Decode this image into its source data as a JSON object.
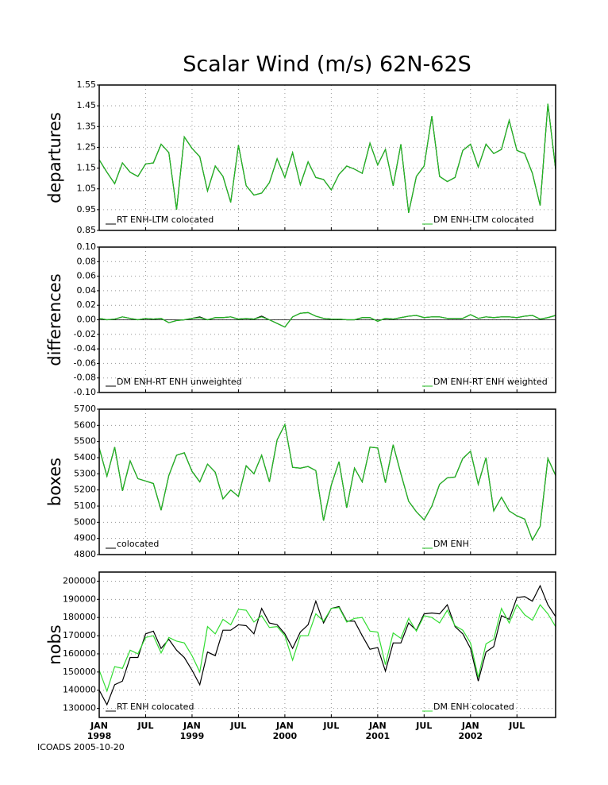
{
  "title": "Scalar Wind (m/s) 62N-62S",
  "footer": "ICOADS 2005-10-20",
  "x_axis": {
    "categories": [
      "JAN",
      null,
      null,
      null,
      null,
      null,
      "JUL",
      null,
      null,
      null,
      null,
      null,
      "JAN",
      null,
      null,
      null,
      null,
      null,
      "JUL",
      null,
      null,
      null,
      null,
      null,
      "JAN",
      null,
      null,
      null,
      null,
      null,
      "JUL",
      null,
      null,
      null,
      null,
      null,
      "JAN",
      null,
      null,
      null,
      null,
      null,
      "JUL",
      null,
      null,
      null,
      null,
      null,
      "JAN",
      null,
      null,
      null,
      null,
      null,
      "JUL",
      null,
      null,
      null,
      null,
      null
    ],
    "years": [
      "1998",
      null,
      null,
      null,
      null,
      null,
      null,
      null,
      null,
      null,
      null,
      null,
      "1999",
      null,
      null,
      null,
      null,
      null,
      null,
      null,
      null,
      null,
      null,
      null,
      "2000",
      null,
      null,
      null,
      null,
      null,
      null,
      null,
      null,
      null,
      null,
      null,
      "2001",
      null,
      null,
      null,
      null,
      null,
      null,
      null,
      null,
      null,
      null,
      null,
      "2002",
      null,
      null,
      null,
      null,
      null,
      null,
      null,
      null,
      null,
      null,
      null
    ]
  },
  "chart_data": [
    {
      "type": "line",
      "y_label": "departures",
      "ylim": [
        0.85,
        1.55
      ],
      "yticks": [
        0.85,
        0.95,
        1.05,
        1.15,
        1.25,
        1.35,
        1.45,
        1.55
      ],
      "grid": true,
      "series": [
        {
          "name": "RT ENH-LTM colocated",
          "color": "#000000",
          "values": [
            1.19,
            1.13,
            1.075,
            1.175,
            1.13,
            1.11,
            1.17,
            1.175,
            1.265,
            1.225,
            0.95,
            1.3,
            1.245,
            1.205,
            1.04,
            1.16,
            1.11,
            0.985,
            1.26,
            1.065,
            1.02,
            1.03,
            1.08,
            1.195,
            1.105,
            1.225,
            1.07,
            1.18,
            1.105,
            1.095,
            1.045,
            1.12,
            1.16,
            1.145,
            1.125,
            1.27,
            1.165,
            1.24,
            1.065,
            1.265,
            0.935,
            1.11,
            1.16,
            1.4,
            1.11,
            1.085,
            1.105,
            1.235,
            1.265,
            1.155,
            1.265,
            1.22,
            1.24,
            1.38,
            1.235,
            1.22,
            1.125,
            0.97,
            1.46,
            1.145
          ]
        },
        {
          "name": "DM ENH-LTM colocated",
          "color": "#22bb22",
          "values": [
            1.19,
            1.13,
            1.075,
            1.175,
            1.13,
            1.11,
            1.17,
            1.175,
            1.265,
            1.225,
            0.95,
            1.3,
            1.245,
            1.205,
            1.04,
            1.16,
            1.11,
            0.985,
            1.26,
            1.065,
            1.02,
            1.03,
            1.08,
            1.195,
            1.105,
            1.225,
            1.07,
            1.18,
            1.105,
            1.095,
            1.045,
            1.12,
            1.16,
            1.145,
            1.125,
            1.27,
            1.165,
            1.24,
            1.065,
            1.265,
            0.935,
            1.11,
            1.16,
            1.4,
            1.11,
            1.085,
            1.105,
            1.235,
            1.265,
            1.155,
            1.265,
            1.22,
            1.24,
            1.38,
            1.235,
            1.22,
            1.125,
            0.97,
            1.46,
            1.145
          ]
        }
      ]
    },
    {
      "type": "line",
      "y_label": "differences",
      "ylim": [
        -0.1,
        0.1
      ],
      "zero_line": true,
      "yticks": [
        {
          "value": -0.1,
          "label": "-0.10"
        },
        {
          "value": -0.08,
          "label": "-0.08"
        },
        {
          "value": -0.06,
          "label": "-0.06"
        },
        {
          "value": -0.04,
          "label": "-0.04"
        },
        {
          "value": -0.02,
          "label": "-0.02"
        },
        {
          "value": 0,
          "label": "0.00"
        },
        {
          "value": 0.02,
          "label": "0.02"
        },
        {
          "value": 0.04,
          "label": "0.04"
        },
        {
          "value": 0.06,
          "label": "0.06"
        },
        {
          "value": 0.08,
          "label": "0.08"
        },
        {
          "value": 0.1,
          "label": "0.10"
        }
      ],
      "grid": true,
      "series": [
        {
          "name": "DM ENH-RT ENH unweighted",
          "color": "#000000",
          "values": [
            0.002,
            0.0,
            0.001,
            0.004,
            0.002,
            0.0,
            0.002,
            0.001,
            0.002,
            -0.004,
            -0.001,
            0.0,
            0.002,
            0.004,
            0.0,
            0.003,
            0.003,
            0.004,
            0.001,
            0.002,
            0.001,
            0.005,
            0.0,
            -0.005,
            -0.01,
            0.004,
            0.009,
            0.01,
            0.005,
            0.002,
            0.001,
            0.001,
            0.0,
            0.0,
            0.003,
            0.003,
            -0.002,
            0.002,
            0.001,
            0.003,
            0.005,
            0.006,
            0.003,
            0.004,
            0.004,
            0.002,
            0.002,
            0.002,
            0.007,
            0.002,
            0.004,
            0.003,
            0.004,
            0.004,
            0.003,
            0.005,
            0.006,
            0.001,
            0.003,
            0.006
          ]
        },
        {
          "name": "DM ENH-RT ENH weighted",
          "color": "#22bb22",
          "values": [
            0.002,
            0.0,
            0.001,
            0.004,
            0.002,
            0.0,
            0.002,
            0.001,
            0.002,
            -0.004,
            -0.001,
            0.0,
            0.002,
            0.003,
            0.0,
            0.003,
            0.003,
            0.004,
            0.001,
            0.002,
            0.001,
            0.004,
            0.0,
            -0.005,
            -0.01,
            0.004,
            0.009,
            0.01,
            0.005,
            0.002,
            0.001,
            0.001,
            0.0,
            0.0,
            0.003,
            0.003,
            -0.002,
            0.002,
            0.001,
            0.003,
            0.005,
            0.006,
            0.003,
            0.004,
            0.004,
            0.002,
            0.002,
            0.002,
            0.007,
            0.002,
            0.004,
            0.003,
            0.004,
            0.004,
            0.003,
            0.005,
            0.006,
            0.001,
            0.003,
            0.006
          ]
        }
      ]
    },
    {
      "type": "line",
      "y_label": "boxes",
      "ylim": [
        4800,
        5700
      ],
      "yticks": [
        4800,
        4900,
        5000,
        5100,
        5200,
        5300,
        5400,
        5500,
        5600,
        5700
      ],
      "grid": true,
      "series": [
        {
          "name": "colocated",
          "color": "#000000",
          "values": [
            5460,
            5285,
            5465,
            5195,
            5380,
            5270,
            5255,
            5240,
            5075,
            5290,
            5415,
            5430,
            5315,
            5250,
            5360,
            5310,
            5145,
            5200,
            5160,
            5350,
            5300,
            5415,
            5250,
            5510,
            5605,
            5340,
            5335,
            5345,
            5320,
            5010,
            5230,
            5375,
            5090,
            5335,
            5250,
            5465,
            5460,
            5245,
            5480,
            5300,
            5130,
            5065,
            5015,
            5100,
            5235,
            5275,
            5280,
            5395,
            5440,
            5235,
            5400,
            5070,
            5155,
            5070,
            5040,
            5020,
            4890,
            4975,
            5395,
            5290
          ]
        },
        {
          "name": "DM ENH",
          "color": "#22bb22",
          "values": [
            5460,
            5285,
            5465,
            5195,
            5380,
            5270,
            5255,
            5240,
            5075,
            5290,
            5415,
            5430,
            5315,
            5250,
            5360,
            5310,
            5145,
            5200,
            5160,
            5350,
            5300,
            5415,
            5250,
            5510,
            5605,
            5340,
            5335,
            5345,
            5320,
            5010,
            5230,
            5375,
            5090,
            5335,
            5250,
            5465,
            5460,
            5245,
            5480,
            5300,
            5130,
            5065,
            5015,
            5100,
            5235,
            5275,
            5280,
            5395,
            5440,
            5235,
            5400,
            5070,
            5155,
            5070,
            5040,
            5020,
            4890,
            4975,
            5395,
            5290
          ]
        }
      ]
    },
    {
      "type": "line",
      "y_label": "nobs",
      "ylim": [
        125000,
        205000
      ],
      "yticks": [
        130000,
        140000,
        150000,
        160000,
        170000,
        180000,
        190000,
        200000
      ],
      "grid": true,
      "series": [
        {
          "name": "RT ENH colocated",
          "color": "#000000",
          "values": [
            140000,
            132000,
            143000,
            145000,
            158000,
            158000,
            171000,
            172500,
            163000,
            168000,
            162000,
            158000,
            151000,
            143000,
            161000,
            159000,
            173000,
            173000,
            176000,
            175500,
            171000,
            185000,
            177000,
            176000,
            171000,
            163000,
            172000,
            176000,
            189000,
            177000,
            185000,
            186000,
            178000,
            178000,
            170000,
            162500,
            163500,
            150500,
            166000,
            166000,
            177000,
            173000,
            182000,
            182500,
            182000,
            187000,
            175000,
            171000,
            163000,
            145000,
            161000,
            164000,
            181000,
            179000,
            191000,
            191500,
            189000,
            197500,
            187000,
            180500
          ]
        },
        {
          "name": "DM ENH colocated",
          "color": "#33dd33",
          "values": [
            151000,
            139500,
            153000,
            152000,
            162000,
            160000,
            169000,
            170000,
            160500,
            169000,
            167000,
            166000,
            159000,
            150000,
            175000,
            171000,
            179000,
            176000,
            184500,
            184000,
            177500,
            181000,
            174500,
            175000,
            170000,
            156500,
            170000,
            170000,
            182000,
            178000,
            185000,
            185500,
            177500,
            179500,
            180000,
            172500,
            172000,
            154000,
            171500,
            168500,
            179500,
            172500,
            181000,
            180000,
            177000,
            184000,
            175500,
            173000,
            166000,
            147000,
            165500,
            168000,
            185000,
            177000,
            187000,
            181500,
            178500,
            187000,
            182000,
            175000
          ]
        }
      ]
    }
  ]
}
